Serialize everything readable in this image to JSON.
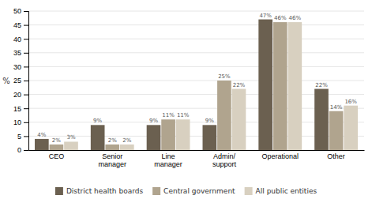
{
  "chart_data": {
    "type": "bar",
    "ylabel": "%",
    "categories": [
      "CEO",
      "Senior\nmanager",
      "Line\nmanager",
      "Admin/\nsupport",
      "Operational",
      "Other"
    ],
    "series": [
      {
        "name": "District health boards",
        "color": "#6b6050",
        "values": [
          4,
          9,
          9,
          9,
          47,
          22
        ],
        "value_labels": [
          "4%",
          "9%",
          "9%",
          "9%",
          "47%",
          "22%"
        ]
      },
      {
        "name": "Central government",
        "color": "#b0a48e",
        "values": [
          2,
          2,
          11,
          25,
          46,
          14
        ],
        "value_labels": [
          "2%",
          "2%",
          "11%",
          "25%",
          "46%",
          "14%"
        ]
      },
      {
        "name": "All public entities",
        "color": "#d8d0c0",
        "values": [
          3,
          2,
          11,
          22,
          46,
          16
        ],
        "value_labels": [
          "3%",
          "2%",
          "11%",
          "22%",
          "46%",
          "16%"
        ]
      }
    ],
    "ylim": [
      0,
      50
    ],
    "yticks": [
      0,
      5,
      10,
      15,
      20,
      25,
      30,
      35,
      40,
      45,
      50
    ],
    "grid": true,
    "data_labels": true,
    "legend": "bottom"
  }
}
